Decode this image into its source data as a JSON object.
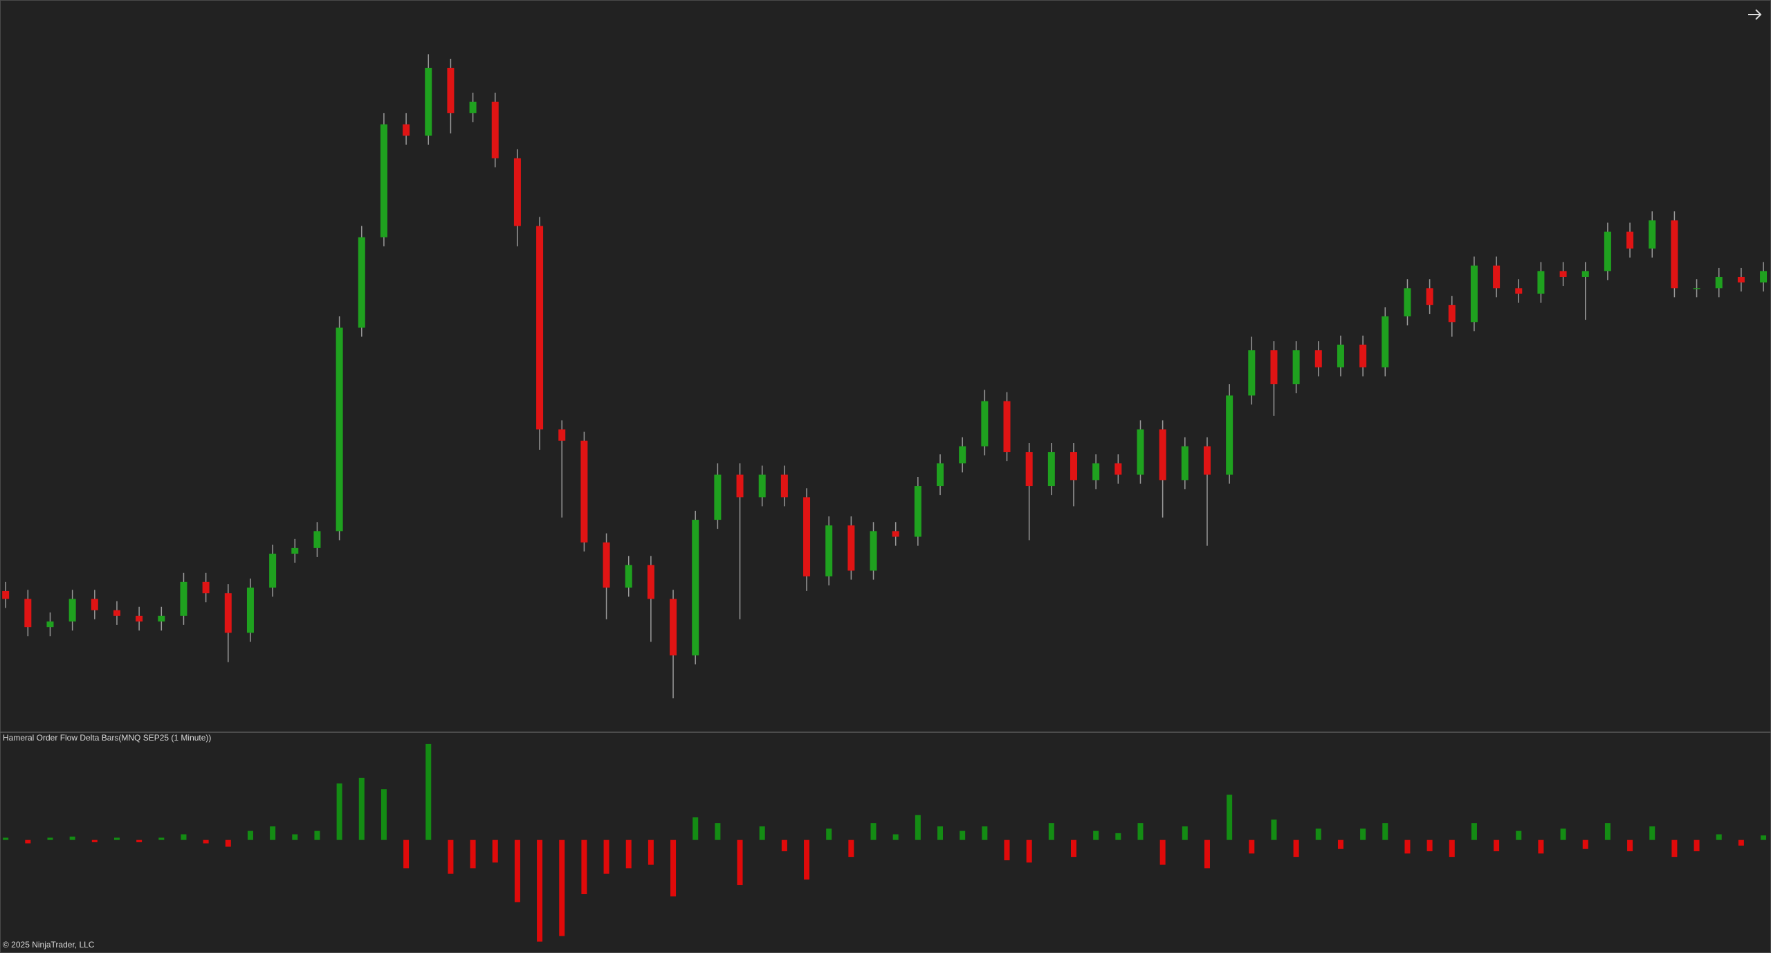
{
  "chart_data": [
    {
      "type": "candlestick",
      "up_color": "#1fa11f",
      "down_color": "#e01414",
      "wick_color": "#9a9a9a",
      "ylim": [
        0,
        648
      ],
      "open": [
        125,
        118,
        93,
        98,
        118,
        108,
        103,
        98,
        103,
        133,
        123,
        88,
        128,
        158,
        163,
        178,
        358,
        438,
        538,
        528,
        588,
        548,
        558,
        508,
        448,
        268,
        258,
        168,
        128,
        148,
        118,
        68,
        188,
        228,
        208,
        228,
        208,
        138,
        183,
        143,
        178,
        173,
        218,
        238,
        253,
        293,
        248,
        218,
        248,
        223,
        238,
        228,
        268,
        223,
        253,
        228,
        298,
        338,
        308,
        338,
        323,
        343,
        323,
        368,
        393,
        378,
        363,
        413,
        393,
        388,
        408,
        403,
        408,
        443,
        428,
        453,
        393,
        393,
        403,
        398
      ],
      "high": [
        133,
        126,
        106,
        126,
        126,
        116,
        111,
        111,
        141,
        141,
        131,
        136,
        166,
        171,
        186,
        368,
        448,
        548,
        548,
        600,
        596,
        566,
        566,
        516,
        456,
        276,
        266,
        176,
        156,
        156,
        126,
        196,
        238,
        238,
        236,
        236,
        216,
        191,
        191,
        186,
        186,
        226,
        246,
        261,
        303,
        301,
        256,
        256,
        256,
        246,
        246,
        276,
        276,
        261,
        261,
        308,
        350,
        346,
        346,
        346,
        351,
        351,
        376,
        401,
        401,
        386,
        421,
        421,
        401,
        416,
        416,
        416,
        451,
        451,
        461,
        461,
        401,
        411,
        411,
        416
      ],
      "low": [
        110,
        85,
        85,
        90,
        100,
        95,
        90,
        90,
        95,
        115,
        62,
        80,
        120,
        150,
        155,
        170,
        350,
        430,
        520,
        520,
        530,
        540,
        500,
        430,
        250,
        190,
        160,
        100,
        120,
        80,
        30,
        60,
        180,
        100,
        200,
        200,
        125,
        130,
        135,
        135,
        165,
        165,
        210,
        230,
        245,
        240,
        170,
        210,
        200,
        215,
        220,
        220,
        190,
        215,
        165,
        220,
        290,
        280,
        300,
        315,
        315,
        315,
        315,
        360,
        370,
        350,
        355,
        385,
        380,
        380,
        395,
        365,
        400,
        420,
        420,
        385,
        385,
        385,
        390,
        390
      ],
      "close": [
        118,
        93,
        98,
        118,
        108,
        103,
        98,
        103,
        133,
        123,
        88,
        128,
        158,
        163,
        178,
        358,
        438,
        538,
        528,
        588,
        548,
        558,
        508,
        448,
        268,
        258,
        168,
        128,
        148,
        118,
        68,
        188,
        228,
        208,
        228,
        208,
        138,
        183,
        143,
        178,
        173,
        218,
        238,
        253,
        293,
        248,
        218,
        248,
        223,
        238,
        228,
        268,
        223,
        253,
        228,
        298,
        338,
        308,
        338,
        323,
        343,
        323,
        368,
        393,
        378,
        363,
        413,
        393,
        388,
        408,
        403,
        408,
        443,
        428,
        453,
        393,
        393,
        403,
        398,
        408
      ]
    },
    {
      "type": "bar",
      "title": "Hameral Order Flow Delta Bars(MNQ SEP25 (1 Minute))",
      "up_color": "#148c14",
      "down_color": "#e00a0a",
      "ylim": [
        -97,
        88
      ],
      "values": [
        2,
        -3,
        2,
        3,
        -2,
        2,
        -2,
        2,
        5,
        -3,
        -6,
        8,
        12,
        5,
        8,
        50,
        55,
        45,
        -25,
        85,
        -30,
        -25,
        -20,
        -55,
        -90,
        -85,
        -48,
        -30,
        -25,
        -22,
        -50,
        20,
        15,
        -40,
        12,
        -10,
        -35,
        10,
        -15,
        15,
        5,
        22,
        12,
        8,
        12,
        -18,
        -20,
        15,
        -15,
        8,
        6,
        15,
        -22,
        12,
        -25,
        40,
        -12,
        18,
        -15,
        10,
        -8,
        10,
        15,
        -12,
        -10,
        -15,
        15,
        -10,
        8,
        -12,
        10,
        -8,
        15,
        -10,
        12,
        -15,
        -10,
        5,
        -5,
        4
      ]
    }
  ],
  "footer": "© 2025 NinjaTrader, LLC"
}
